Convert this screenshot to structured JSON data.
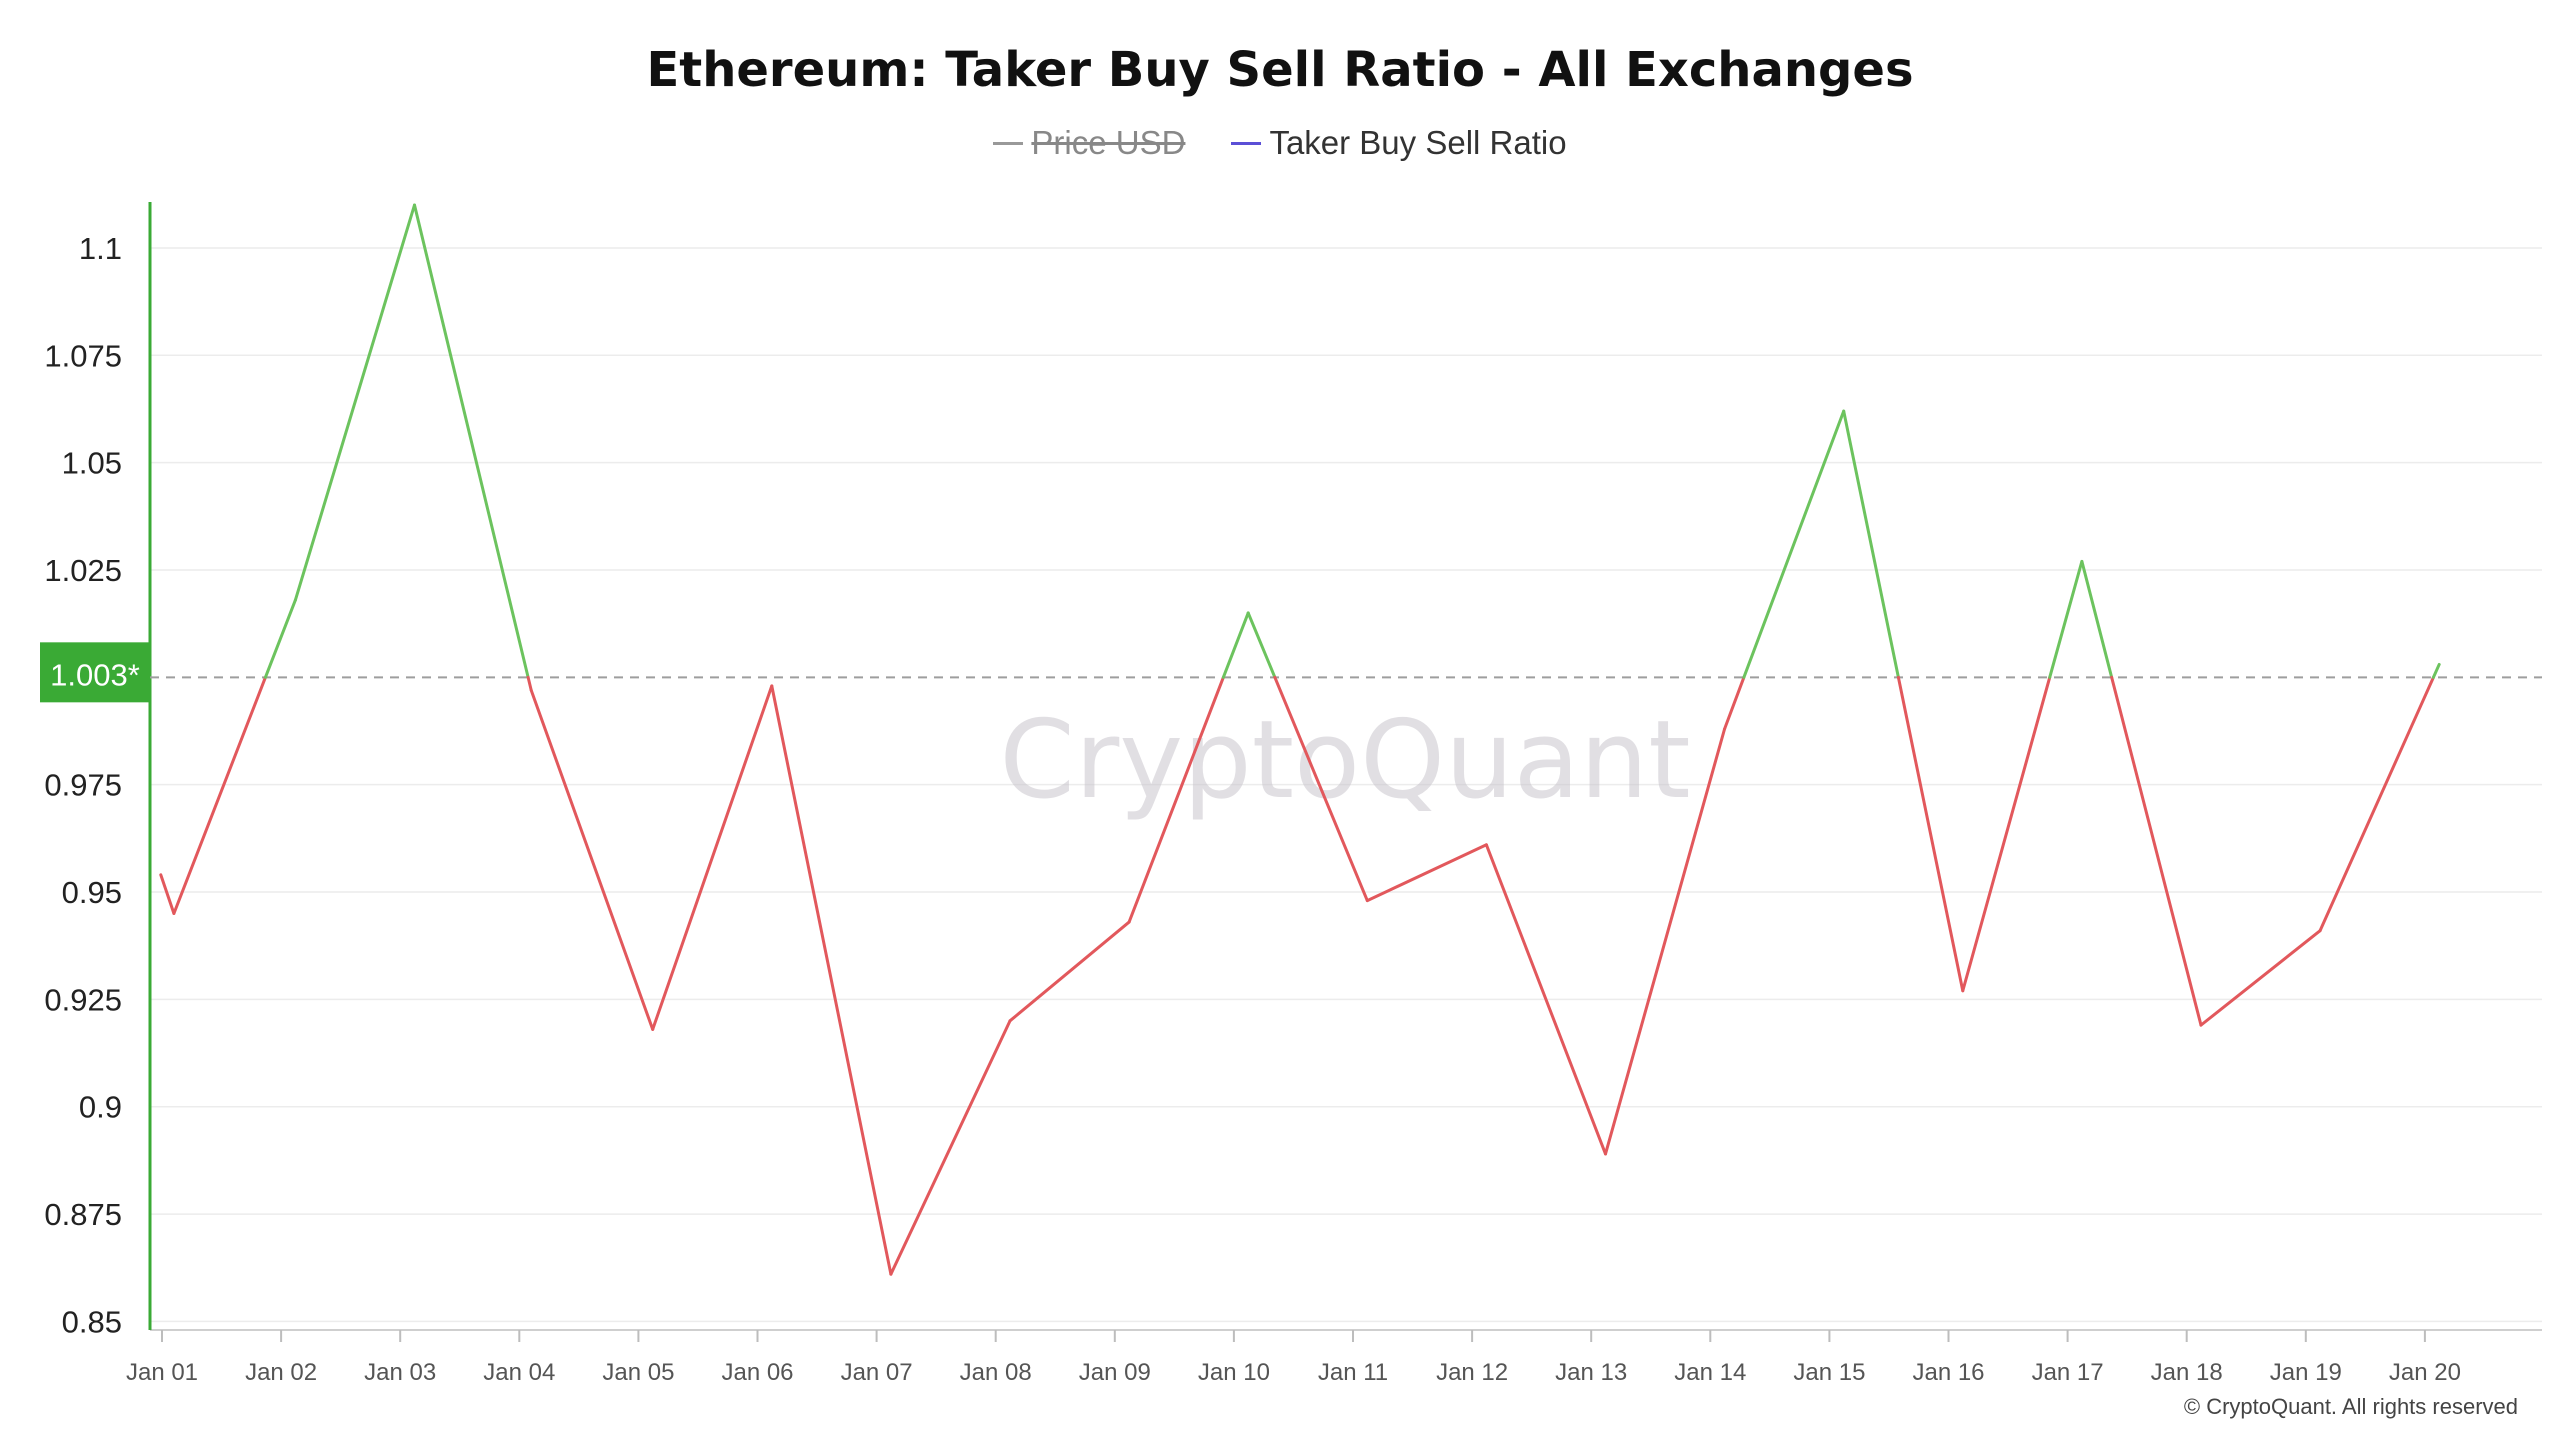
{
  "chart_data": {
    "type": "line",
    "title": "Ethereum: Taker Buy Sell Ratio - All Exchanges",
    "legend": {
      "position": "top-center",
      "items": [
        {
          "label": "Price USD",
          "color": "#999999",
          "hidden": true
        },
        {
          "label": "Taker Buy Sell Ratio",
          "color": "#5b4fd6",
          "hidden": false
        }
      ]
    },
    "x_ticks": [
      "Jan 01",
      "Jan 02",
      "Jan 03",
      "Jan 04",
      "Jan 05",
      "Jan 06",
      "Jan 07",
      "Jan 08",
      "Jan 09",
      "Jan 10",
      "Jan 11",
      "Jan 12",
      "Jan 13",
      "Jan 14",
      "Jan 15",
      "Jan 16",
      "Jan 17",
      "Jan 18",
      "Jan 19",
      "Jan 20"
    ],
    "y_ticks": [
      "1.1",
      "1.075",
      "1.05",
      "1.025",
      "0.975",
      "0.95",
      "0.925",
      "0.9",
      "0.875",
      "0.85"
    ],
    "ylim": [
      0.848,
      1.11
    ],
    "threshold": {
      "value": 1.0,
      "label": "1.003*",
      "color": "#3aaa35"
    },
    "series": [
      {
        "name": "Taker Buy Sell Ratio",
        "above_color": "#6cc35e",
        "below_color": "#e2585c",
        "points": [
          [
            -0.01,
            0.954
          ],
          [
            0.1,
            0.945
          ],
          [
            1.12,
            1.018
          ],
          [
            2.12,
            1.11
          ],
          [
            3.1,
            0.997
          ],
          [
            4.12,
            0.918
          ],
          [
            5.12,
            0.998
          ],
          [
            6.12,
            0.861
          ],
          [
            7.12,
            0.92
          ],
          [
            8.12,
            0.943
          ],
          [
            9.12,
            1.015
          ],
          [
            10.12,
            0.948
          ],
          [
            11.12,
            0.961
          ],
          [
            12.12,
            0.889
          ],
          [
            13.12,
            0.988
          ],
          [
            14.12,
            1.062
          ],
          [
            15.12,
            0.927
          ],
          [
            16.12,
            1.027
          ],
          [
            17.12,
            0.919
          ],
          [
            18.12,
            0.941
          ],
          [
            19.12,
            1.003
          ]
        ]
      }
    ],
    "watermark": "CryptoQuant",
    "grid": true
  },
  "footer": {
    "copyright": "© CryptoQuant. All rights reserved"
  }
}
